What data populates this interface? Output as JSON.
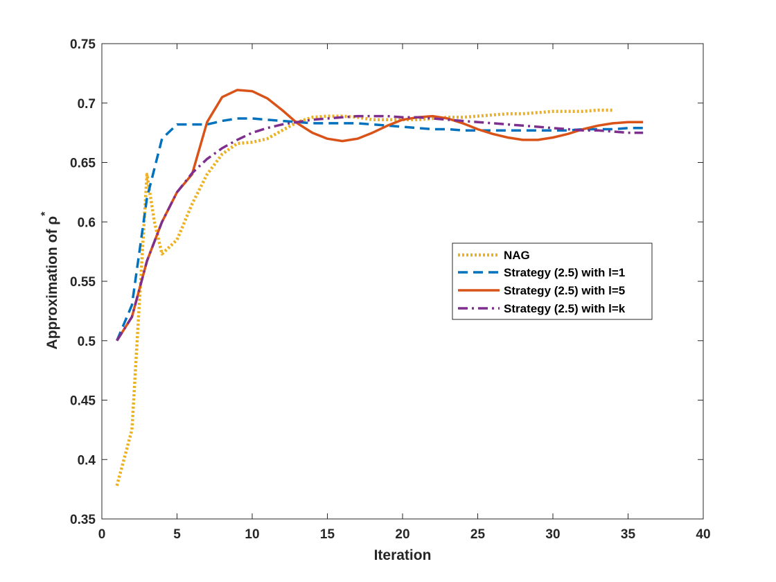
{
  "chart_data": {
    "type": "line",
    "title": "",
    "xlabel": "Iteration",
    "ylabel": "Approximation of ρ*",
    "ylabel_main": "Approximation of ρ",
    "ylabel_superscript": "*",
    "xlim": [
      0,
      40
    ],
    "ylim": [
      0.35,
      0.75
    ],
    "xticks": [
      0,
      5,
      10,
      15,
      20,
      25,
      30,
      35,
      40
    ],
    "xtick_labels": [
      "0",
      "5",
      "10",
      "15",
      "20",
      "25",
      "30",
      "35",
      "40"
    ],
    "yticks": [
      0.35,
      0.4,
      0.45,
      0.5,
      0.55,
      0.6,
      0.65,
      0.7,
      0.75
    ],
    "ytick_labels": [
      "0.35",
      "0.4",
      "0.45",
      "0.5",
      "0.55",
      "0.6",
      "0.65",
      "0.7",
      "0.75"
    ],
    "grid": false,
    "legend_position": "center-right",
    "series": [
      {
        "name": "NAG",
        "color": "#EDB120",
        "style": "dotted",
        "x": [
          1,
          2,
          3,
          3.5,
          4,
          5,
          6,
          7,
          8,
          9,
          10,
          11,
          12,
          13,
          14,
          15,
          16,
          17,
          18,
          19,
          20,
          21,
          22,
          23,
          24,
          25,
          26,
          27,
          28,
          29,
          30,
          31,
          32,
          33,
          34
        ],
        "y": [
          0.378,
          0.425,
          0.64,
          0.6,
          0.573,
          0.585,
          0.615,
          0.64,
          0.657,
          0.666,
          0.667,
          0.67,
          0.677,
          0.684,
          0.688,
          0.689,
          0.689,
          0.688,
          0.686,
          0.686,
          0.686,
          0.686,
          0.687,
          0.688,
          0.688,
          0.689,
          0.69,
          0.691,
          0.691,
          0.692,
          0.693,
          0.693,
          0.693,
          0.694,
          0.694
        ]
      },
      {
        "name": "Strategy (2.5) with l=1",
        "color": "#0072BD",
        "style": "dashed",
        "x": [
          1,
          2,
          3,
          4,
          5,
          6,
          7,
          8,
          9,
          10,
          11,
          12,
          13,
          14,
          15,
          16,
          17,
          18,
          19,
          20,
          21,
          22,
          23,
          24,
          25,
          26,
          27,
          28,
          29,
          30,
          31,
          32,
          33,
          34,
          35,
          36
        ],
        "y": [
          0.5,
          0.53,
          0.62,
          0.67,
          0.682,
          0.682,
          0.682,
          0.685,
          0.687,
          0.687,
          0.686,
          0.685,
          0.684,
          0.683,
          0.683,
          0.683,
          0.683,
          0.682,
          0.681,
          0.68,
          0.679,
          0.678,
          0.678,
          0.677,
          0.677,
          0.677,
          0.677,
          0.677,
          0.677,
          0.677,
          0.677,
          0.678,
          0.678,
          0.678,
          0.679,
          0.679
        ]
      },
      {
        "name": "Strategy (2.5) with l=5",
        "color": "#D95319",
        "style": "solid",
        "x": [
          1,
          2,
          3,
          4,
          5,
          6,
          7,
          8,
          9,
          10,
          11,
          12,
          13,
          14,
          15,
          16,
          17,
          18,
          19,
          20,
          21,
          22,
          23,
          24,
          25,
          26,
          27,
          28,
          29,
          30,
          31,
          32,
          33,
          34,
          35,
          36
        ],
        "y": [
          0.5,
          0.52,
          0.567,
          0.6,
          0.625,
          0.64,
          0.684,
          0.705,
          0.711,
          0.71,
          0.704,
          0.694,
          0.683,
          0.675,
          0.67,
          0.668,
          0.67,
          0.675,
          0.681,
          0.686,
          0.688,
          0.689,
          0.687,
          0.683,
          0.678,
          0.674,
          0.671,
          0.669,
          0.669,
          0.671,
          0.674,
          0.678,
          0.681,
          0.683,
          0.684,
          0.684
        ]
      },
      {
        "name": "Strategy (2.5) with l=k",
        "color": "#7E2F8E",
        "style": "dashdot",
        "x": [
          1,
          2,
          3,
          4,
          5,
          6,
          7,
          8,
          9,
          10,
          11,
          12,
          13,
          14,
          15,
          16,
          17,
          18,
          19,
          20,
          21,
          22,
          23,
          24,
          25,
          26,
          27,
          28,
          29,
          30,
          31,
          32,
          33,
          34,
          35,
          36
        ],
        "y": [
          0.5,
          0.52,
          0.567,
          0.6,
          0.625,
          0.641,
          0.653,
          0.662,
          0.669,
          0.675,
          0.679,
          0.682,
          0.684,
          0.686,
          0.687,
          0.688,
          0.689,
          0.689,
          0.689,
          0.688,
          0.688,
          0.687,
          0.686,
          0.685,
          0.684,
          0.683,
          0.682,
          0.681,
          0.68,
          0.679,
          0.678,
          0.677,
          0.677,
          0.676,
          0.675,
          0.675
        ]
      }
    ]
  }
}
